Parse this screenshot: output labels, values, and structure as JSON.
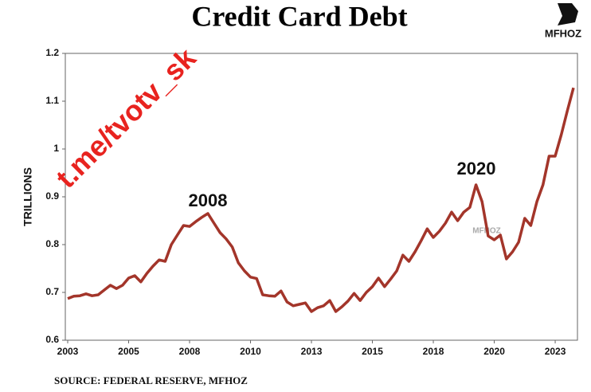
{
  "chart_data": {
    "type": "line",
    "title": "Credit Card Debt",
    "y_label": "TRILLIONS",
    "source": "SOURCE: FEDERAL RESERVE, MFHOZ",
    "watermark": "t.me/tvotv_sk",
    "brand": "MFHOZ",
    "annotations": [
      "2008",
      "2020"
    ],
    "color": "#a3352a",
    "categories": [
      "2003",
      null,
      null,
      null,
      null,
      null,
      null,
      null,
      null,
      null,
      "2005",
      null,
      null,
      null,
      null,
      null,
      null,
      null,
      null,
      null,
      "2008",
      null,
      null,
      null,
      null,
      null,
      null,
      null,
      null,
      null,
      "2010",
      null,
      null,
      null,
      null,
      null,
      null,
      null,
      null,
      null,
      "2013",
      null,
      null,
      null,
      null,
      null,
      null,
      null,
      null,
      null,
      "2015",
      null,
      null,
      null,
      null,
      null,
      null,
      null,
      null,
      null,
      "2018",
      null,
      null,
      null,
      null,
      null,
      null,
      null,
      null,
      null,
      "2020",
      null,
      null,
      null,
      null,
      null,
      null,
      null,
      null,
      null,
      "2023",
      null,
      null,
      null
    ],
    "values": [
      0.687,
      0.692,
      0.693,
      0.697,
      0.693,
      0.695,
      0.705,
      0.715,
      0.708,
      0.715,
      0.73,
      0.735,
      0.722,
      0.74,
      0.755,
      0.768,
      0.765,
      0.8,
      0.82,
      0.84,
      0.838,
      0.848,
      0.857,
      0.865,
      0.845,
      0.825,
      0.812,
      0.795,
      0.762,
      0.745,
      0.732,
      0.729,
      0.695,
      0.693,
      0.692,
      0.703,
      0.68,
      0.672,
      0.675,
      0.678,
      0.66,
      0.668,
      0.672,
      0.683,
      0.66,
      0.67,
      0.682,
      0.698,
      0.683,
      0.7,
      0.712,
      0.73,
      0.712,
      0.728,
      0.745,
      0.778,
      0.765,
      0.785,
      0.808,
      0.833,
      0.815,
      0.828,
      0.845,
      0.868,
      0.85,
      0.868,
      0.878,
      0.925,
      0.89,
      0.818,
      0.81,
      0.82,
      0.77,
      0.785,
      0.805,
      0.855,
      0.84,
      0.89,
      0.925,
      0.985,
      0.985,
      1.03,
      1.08,
      1.128
    ],
    "ylim": [
      0.6,
      1.2
    ],
    "yticks": [
      0.6,
      0.7,
      0.8,
      0.9,
      1,
      1.1,
      1.2
    ]
  }
}
